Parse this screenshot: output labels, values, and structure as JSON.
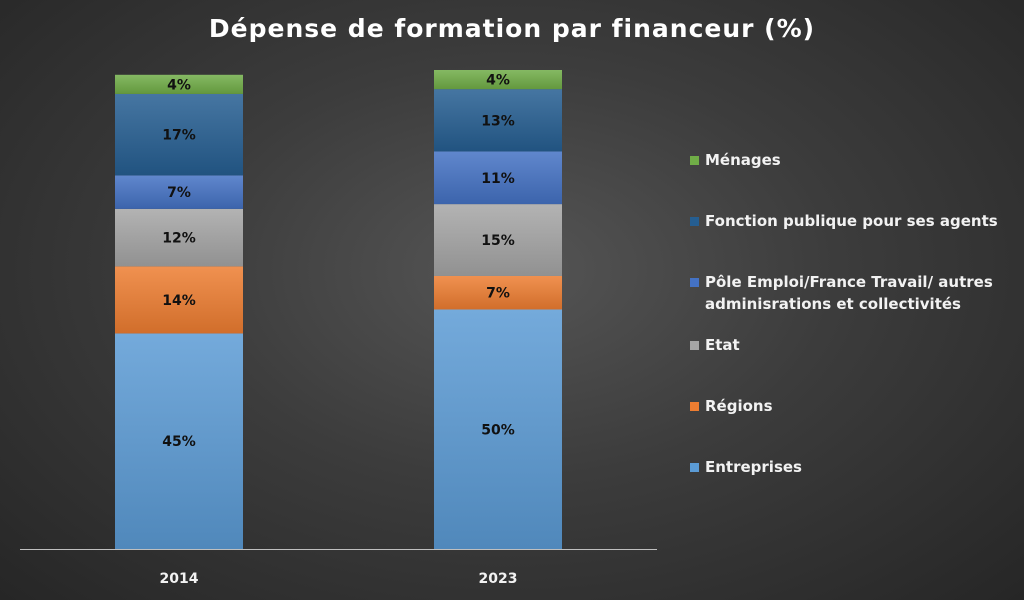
{
  "chart_data": {
    "type": "bar",
    "stacked": true,
    "title": "Dépense de formation par financeur (%)",
    "categories": [
      "2014",
      "2023"
    ],
    "series": [
      {
        "name": "Entreprises",
        "color": "#5b9bd5",
        "values": [
          45,
          50
        ]
      },
      {
        "name": "Régions",
        "color": "#ed7d31",
        "values": [
          14,
          7
        ]
      },
      {
        "name": "Etat",
        "color": "#a5a5a5",
        "values": [
          12,
          15
        ]
      },
      {
        "name": "Pôle Emploi/France Travail/ autres adminisrations et collectivités",
        "color": "#4472c4",
        "values": [
          7,
          11
        ]
      },
      {
        "name": "Fonction publique pour ses agents",
        "color": "#255e91",
        "values": [
          17,
          13
        ]
      },
      {
        "name": "Ménages",
        "color": "#70ad47",
        "values": [
          4,
          4
        ]
      }
    ],
    "data_label_suffix": "%",
    "legend_position": "right",
    "grid": false,
    "ylim": [
      0,
      100
    ]
  }
}
